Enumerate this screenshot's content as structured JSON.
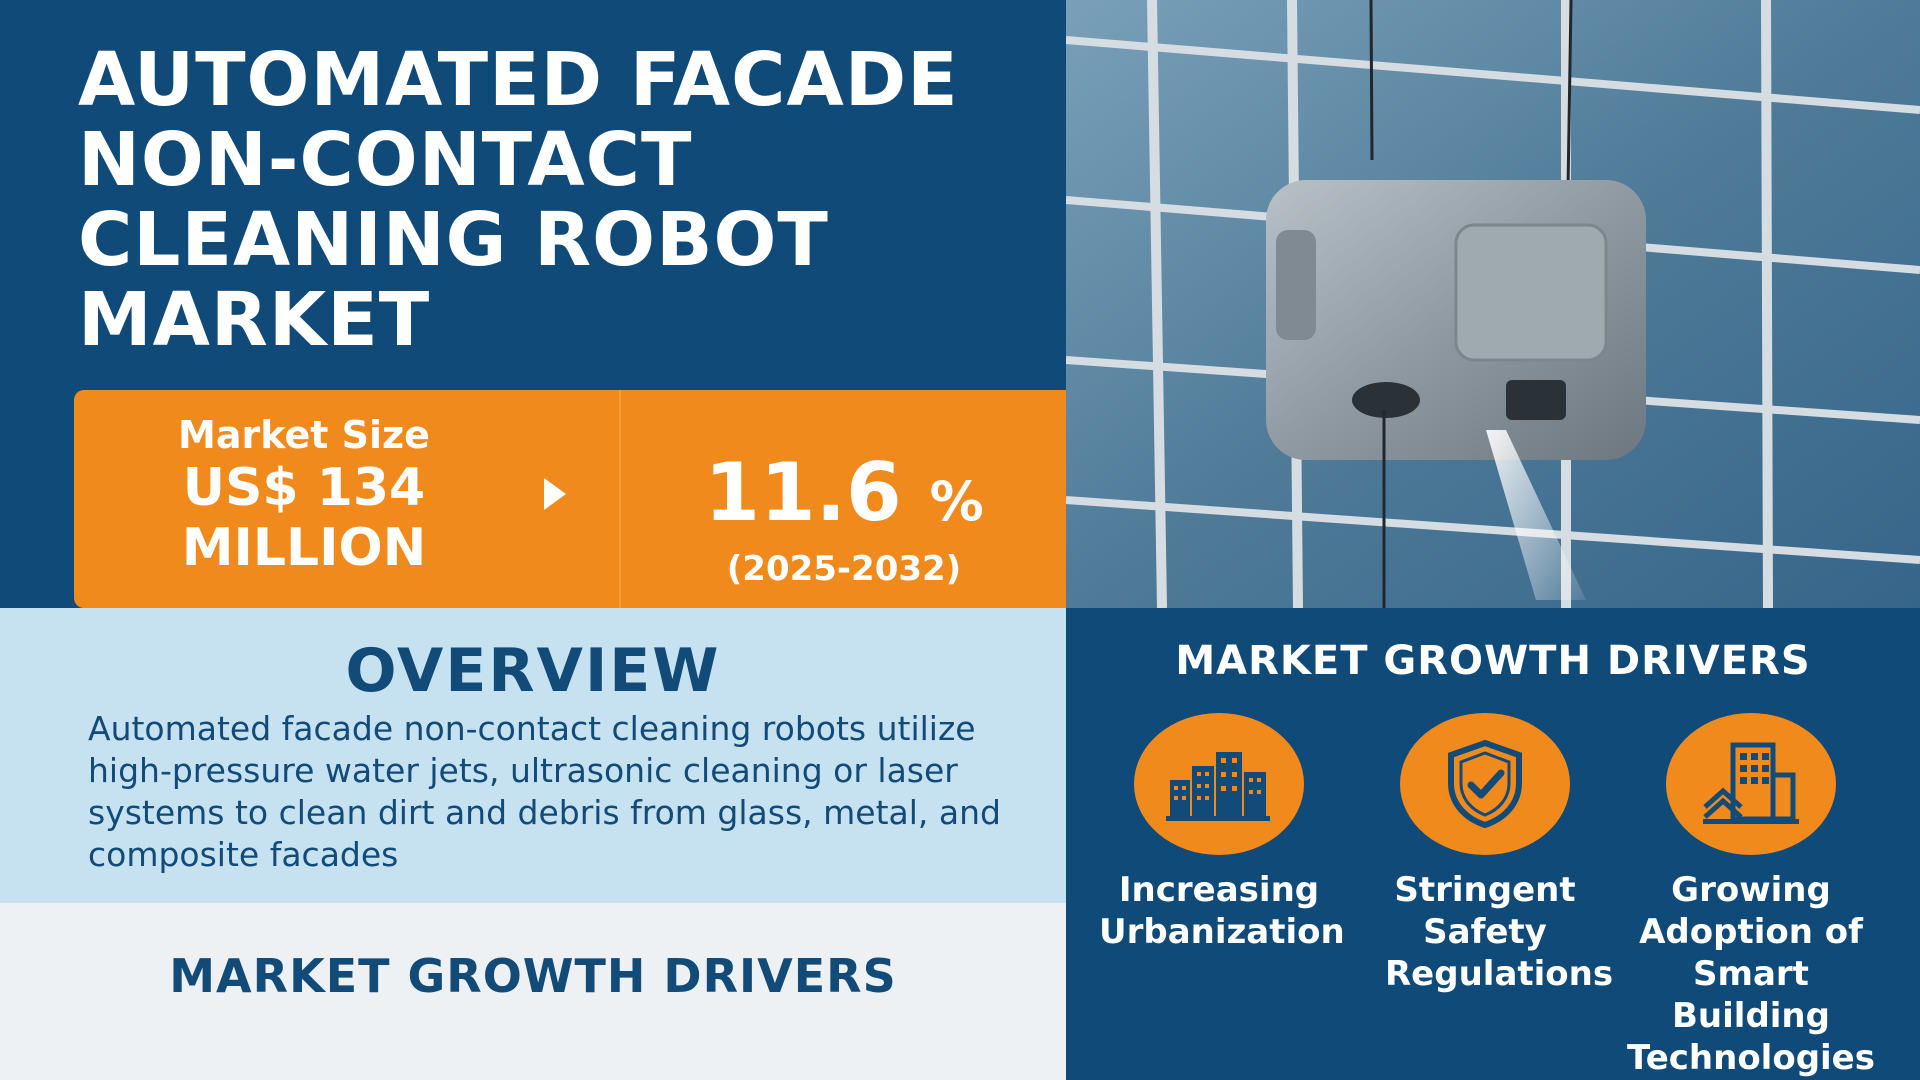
{
  "header": {
    "title": "AUTOMATED FACADE NON-CONTACT CLEANING ROBOT MARKET"
  },
  "stats": {
    "market_size_label": "Market Size",
    "market_size_value": "US$ 134 MILLION",
    "cagr_value": "11.6",
    "cagr_unit": "%",
    "period": "(2025-2032)"
  },
  "overview": {
    "title": "OVERVIEW",
    "text": "Automated facade non-contact cleaning robots utilize high-pressure water jets, ultrasonic cleaning or laser systems to clean dirt and debris from glass, metal, and composite facades"
  },
  "drivers_left": {
    "title": "MARKET GROWTH DRIVERS"
  },
  "drivers_right": {
    "title": "MARKET GROWTH DRIVERS",
    "items": [
      {
        "label": "Increasing Urbanization",
        "icon": "city-buildings-icon"
      },
      {
        "label": "Stringent Safety Regulations",
        "icon": "shield-check-icon"
      },
      {
        "label": "Growing Adoption of Smart Building Technologies",
        "icon": "smart-building-icon"
      }
    ]
  },
  "colors": {
    "navy": "#104a78",
    "orange": "#f18a1c",
    "light_blue": "#c6e2f1",
    "light_gray": "#eef1f3"
  }
}
